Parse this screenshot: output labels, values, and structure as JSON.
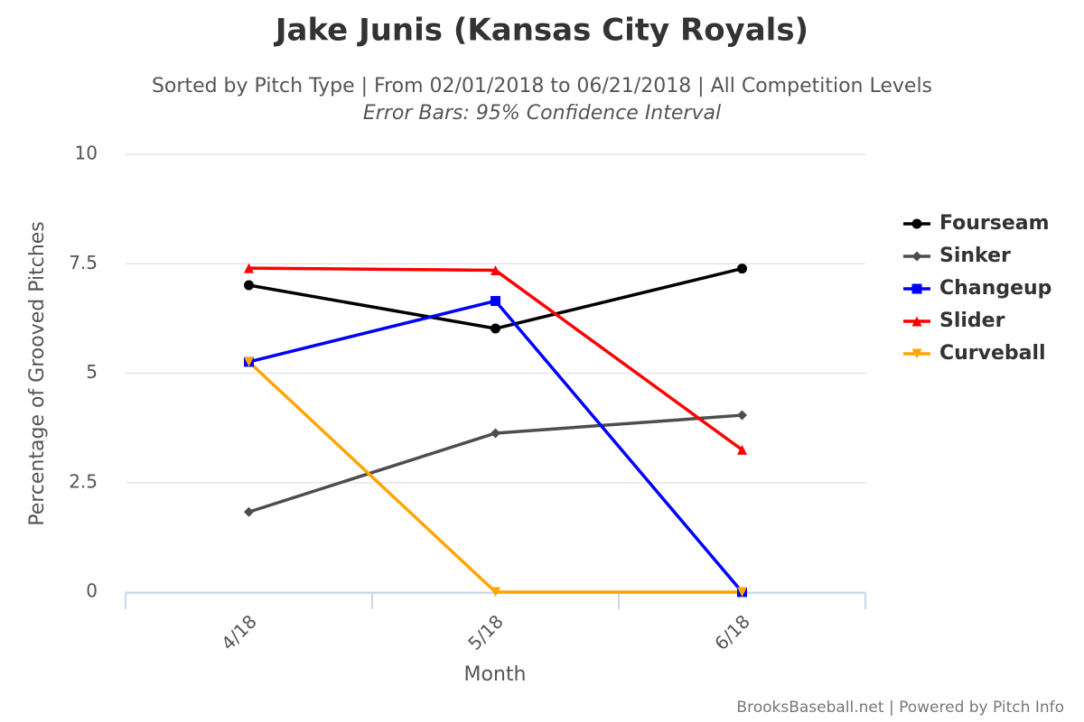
{
  "chart_data": {
    "type": "line",
    "title": "Jake Junis (Kansas City Royals)",
    "subtitle": "Sorted by Pitch Type | From 02/01/2018 to 06/21/2018 | All Competition Levels",
    "subtitle2": "Error Bars: 95% Confidence Interval",
    "x_label": "Month",
    "y_label": "Percentage of Grooved Pitches",
    "credit": "BrooksBaseball.net | Powered by Pitch Info",
    "categories": [
      "4/18",
      "5/18",
      "6/18"
    ],
    "ylim": [
      0,
      10
    ],
    "yticks": [
      0,
      2.5,
      5,
      7.5,
      10
    ],
    "grid": true,
    "legend": "right",
    "series": [
      {
        "name": "Fourseam",
        "color": "#000000",
        "marker": "circle",
        "values": [
          7.01,
          6.02,
          7.39
        ]
      },
      {
        "name": "Sinker",
        "color": "#4d4d4d",
        "marker": "diamond",
        "values": [
          1.83,
          3.63,
          4.04
        ]
      },
      {
        "name": "Changeup",
        "color": "#0000ff",
        "marker": "square",
        "values": [
          5.26,
          6.65,
          0
        ]
      },
      {
        "name": "Slider",
        "color": "#ff0000",
        "marker": "triangle",
        "values": [
          7.4,
          7.35,
          3.25
        ]
      },
      {
        "name": "Curveball",
        "color": "#ffa500",
        "marker": "triangle-down",
        "values": [
          5.26,
          0,
          0
        ]
      }
    ]
  }
}
